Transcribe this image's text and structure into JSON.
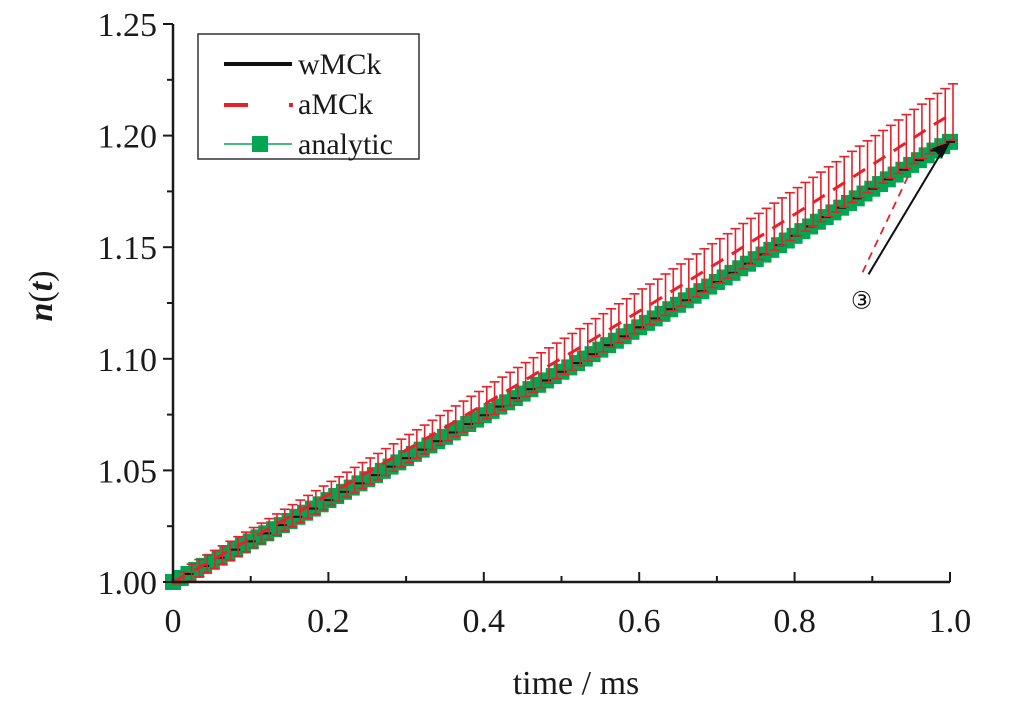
{
  "chart_data": {
    "type": "line",
    "title": "",
    "xlabel": "time / ms",
    "ylabel_parts": {
      "var": "n",
      "open": "(",
      "arg": "t",
      "close": ")"
    },
    "xlim": [
      0,
      1.0
    ],
    "ylim": [
      1.0,
      1.25
    ],
    "x_ticks": [
      0,
      0.2,
      0.4,
      0.6,
      0.8,
      1.0
    ],
    "x_tick_labels": [
      "0",
      "0.2",
      "0.4",
      "0.6",
      "0.8",
      "1.0"
    ],
    "x_minor_ticks": [
      0.1,
      0.3,
      0.5,
      0.7,
      0.9
    ],
    "y_ticks": [
      1.0,
      1.05,
      1.1,
      1.15,
      1.2,
      1.25
    ],
    "y_tick_labels": [
      "1.00",
      "1.05",
      "1.10",
      "1.15",
      "1.20",
      "1.25"
    ],
    "y_minor_ticks": [
      1.025,
      1.075,
      1.125,
      1.175,
      1.225
    ],
    "grid": false,
    "legend_position": "top-left",
    "x": [
      0,
      0.02,
      0.04,
      0.06,
      0.08,
      0.1,
      0.12,
      0.14,
      0.16,
      0.18,
      0.2,
      0.22,
      0.24,
      0.26,
      0.28,
      0.3,
      0.32,
      0.34,
      0.36,
      0.38,
      0.4,
      0.42,
      0.44,
      0.46,
      0.48,
      0.5,
      0.52,
      0.54,
      0.56,
      0.58,
      0.6,
      0.62,
      0.64,
      0.66,
      0.68,
      0.7,
      0.72,
      0.74,
      0.76,
      0.78,
      0.8,
      0.82,
      0.84,
      0.86,
      0.88,
      0.9,
      0.92,
      0.94,
      0.96,
      0.98,
      1.0
    ],
    "series": [
      {
        "name": "wMCk",
        "style": "solid",
        "color": "#111111",
        "values": [
          1.0,
          1.0036,
          1.0072,
          1.0109,
          1.0145,
          1.0182,
          1.0218,
          1.0255,
          1.0292,
          1.0329,
          1.0367,
          1.0404,
          1.0442,
          1.0479,
          1.0517,
          1.0555,
          1.0593,
          1.0631,
          1.067,
          1.0708,
          1.0747,
          1.0786,
          1.0824,
          1.0864,
          1.0903,
          1.0942,
          1.0981,
          1.1021,
          1.1061,
          1.1101,
          1.1141,
          1.1181,
          1.1222,
          1.1262,
          1.1303,
          1.1344,
          1.1385,
          1.1426,
          1.1467,
          1.1509,
          1.1551,
          1.1593,
          1.1635,
          1.1677,
          1.1719,
          1.1762,
          1.1804,
          1.1847,
          1.189,
          1.1933,
          1.1972
        ]
      },
      {
        "name": "aMCk",
        "style": "dashed-with-errorbars",
        "color": "#e8202a",
        "values": [
          1.0,
          1.0038,
          1.0077,
          1.0116,
          1.0155,
          1.0194,
          1.0232,
          1.0272,
          1.0311,
          1.0351,
          1.0391,
          1.043,
          1.0471,
          1.051,
          1.0551,
          1.0591,
          1.0631,
          1.0672,
          1.0713,
          1.0754,
          1.0795,
          1.0836,
          1.0877,
          1.0919,
          1.0961,
          1.1002,
          1.1043,
          1.1086,
          1.1128,
          1.1171,
          1.1213,
          1.1255,
          1.1299,
          1.1341,
          1.1385,
          1.1428,
          1.1471,
          1.1515,
          1.1558,
          1.1603,
          1.1647,
          1.1691,
          1.1736,
          1.178,
          1.1825,
          1.187,
          1.1914,
          1.196,
          1.2005,
          1.2051,
          1.2092
        ],
        "errors": [
          0.001,
          0.0042,
          0.0044,
          0.0046,
          0.0048,
          0.005,
          0.0052,
          0.0054,
          0.0056,
          0.0058,
          0.006,
          0.0062,
          0.0064,
          0.0066,
          0.0068,
          0.007,
          0.0072,
          0.0074,
          0.0076,
          0.0078,
          0.008,
          0.0082,
          0.0084,
          0.0086,
          0.0088,
          0.009,
          0.0092,
          0.0094,
          0.0096,
          0.0098,
          0.01,
          0.0102,
          0.0104,
          0.0106,
          0.0108,
          0.011,
          0.0112,
          0.0114,
          0.0116,
          0.0118,
          0.012,
          0.0122,
          0.0124,
          0.0126,
          0.0128,
          0.013,
          0.0132,
          0.0134,
          0.0136,
          0.0138,
          0.014
        ]
      },
      {
        "name": "analytic",
        "style": "line-square-markers",
        "color": "#00a651",
        "values": [
          1.0,
          1.0036,
          1.0072,
          1.0109,
          1.0145,
          1.0182,
          1.0218,
          1.0255,
          1.0292,
          1.0329,
          1.0367,
          1.0404,
          1.0442,
          1.0479,
          1.0517,
          1.0555,
          1.0593,
          1.0631,
          1.067,
          1.0708,
          1.0747,
          1.0786,
          1.0824,
          1.0864,
          1.0903,
          1.0942,
          1.0981,
          1.1021,
          1.1061,
          1.1101,
          1.1141,
          1.1181,
          1.1222,
          1.1262,
          1.1303,
          1.1344,
          1.1385,
          1.1426,
          1.1467,
          1.1509,
          1.1551,
          1.1593,
          1.1635,
          1.1677,
          1.1719,
          1.1762,
          1.1804,
          1.1847,
          1.189,
          1.1933,
          1.1972
        ]
      }
    ],
    "annotations": [
      {
        "text": "③",
        "points_to_x": 1.0,
        "points_to_y": 1.197,
        "label_x": 0.89,
        "label_y": 1.128
      }
    ]
  }
}
